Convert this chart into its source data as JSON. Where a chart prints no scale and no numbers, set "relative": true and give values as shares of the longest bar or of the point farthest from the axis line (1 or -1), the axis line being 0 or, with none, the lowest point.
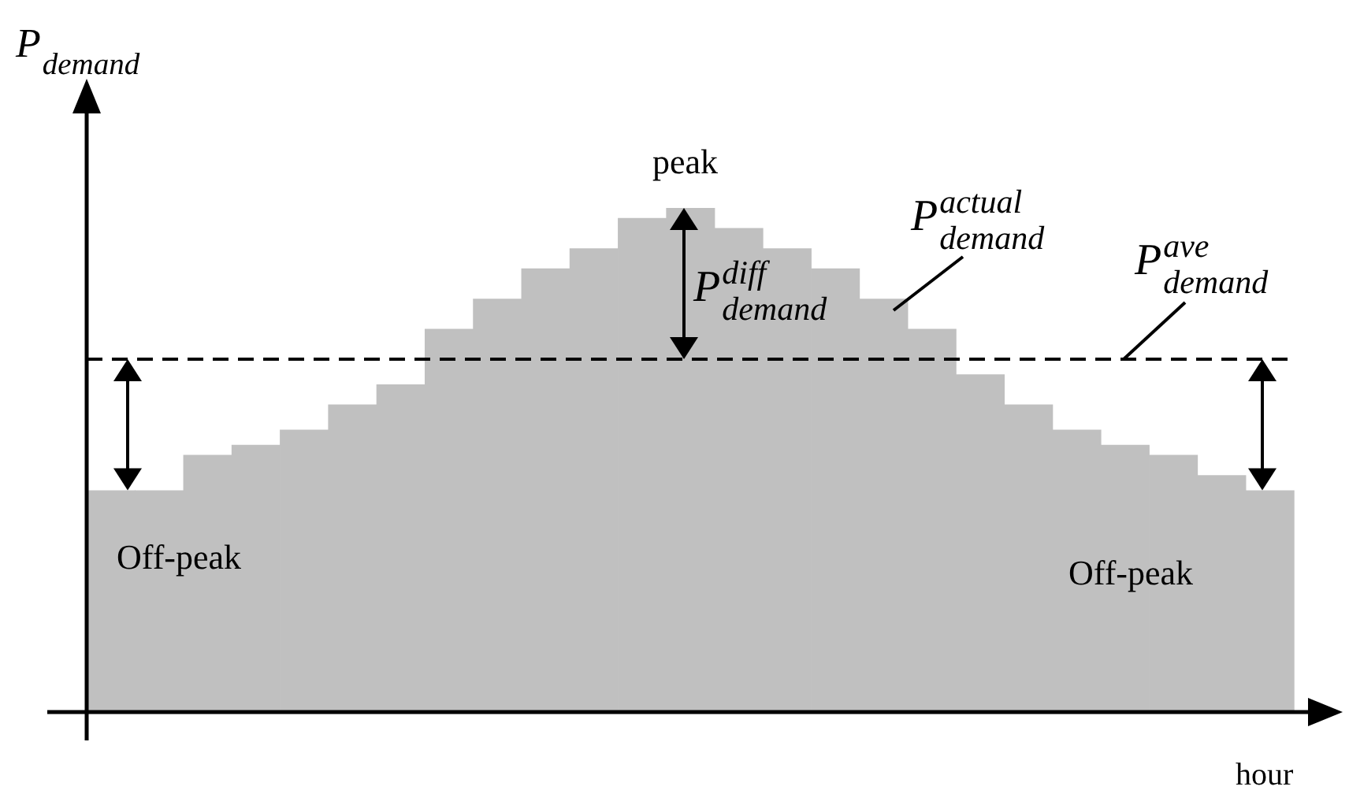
{
  "chart_data": {
    "type": "bar",
    "relative": true,
    "color": "#c0c0c0",
    "categories": [
      null,
      null,
      null,
      null,
      null,
      null,
      null,
      null,
      null,
      null,
      null,
      null,
      null,
      null,
      null,
      null,
      null,
      null,
      null,
      null,
      null,
      null,
      null,
      null,
      null
    ],
    "values": [
      0.44,
      0.44,
      0.51,
      0.53,
      0.56,
      0.61,
      0.65,
      0.76,
      0.82,
      0.88,
      0.92,
      0.98,
      1,
      0.96,
      0.92,
      0.88,
      0.82,
      0.76,
      0.67,
      0.61,
      0.56,
      0.53,
      0.51,
      0.47,
      0.44
    ],
    "ylabel": "P$_{demand}$",
    "xlabel": "hour",
    "ref_lines": [
      {
        "axis": "y",
        "value": 0.7,
        "color": "#000000",
        "line_style": "dashed"
      }
    ],
    "annotations": [
      "peak",
      "P$^{diff}$$_{demand}$",
      "P$^{actual}$$_{demand}$",
      "P$^{ave}$$_{demand}$",
      "Off-peak",
      "Off-peak"
    ],
    "grid": false,
    "legend": false
  }
}
